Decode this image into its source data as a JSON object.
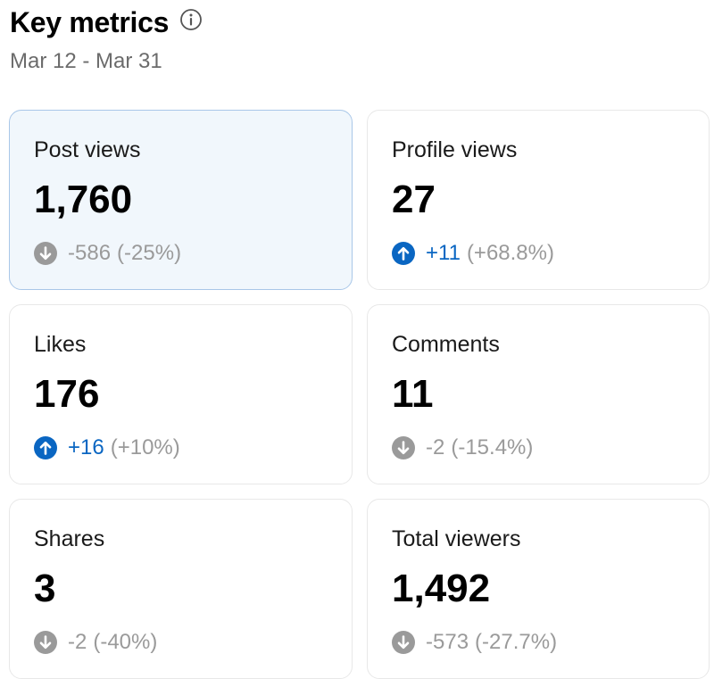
{
  "header": {
    "title": "Key metrics",
    "date_range": "Mar 12 - Mar 31"
  },
  "colors": {
    "up": "#0a66c2",
    "down": "#9a9a9a",
    "selected_bg": "#f1f7fc",
    "selected_border": "#a9c7e8"
  },
  "metrics": [
    {
      "label": "Post views",
      "value": "1,760",
      "delta": "-586",
      "pct": "(-25%)",
      "trend": "down",
      "selected": true
    },
    {
      "label": "Profile views",
      "value": "27",
      "delta": "+11",
      "pct": "(+68.8%)",
      "trend": "up",
      "selected": false
    },
    {
      "label": "Likes",
      "value": "176",
      "delta": "+16",
      "pct": "(+10%)",
      "trend": "up",
      "selected": false
    },
    {
      "label": "Comments",
      "value": "11",
      "delta": "-2",
      "pct": "(-15.4%)",
      "trend": "down",
      "selected": false
    },
    {
      "label": "Shares",
      "value": "3",
      "delta": "-2",
      "pct": "(-40%)",
      "trend": "down",
      "selected": false
    },
    {
      "label": "Total viewers",
      "value": "1,492",
      "delta": "-573",
      "pct": "(-27.7%)",
      "trend": "down",
      "selected": false
    }
  ]
}
